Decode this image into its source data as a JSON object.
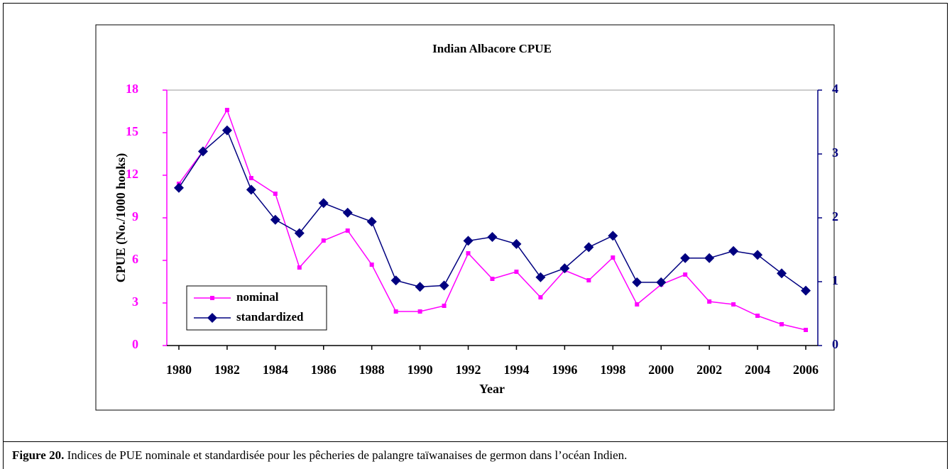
{
  "chart_data": {
    "type": "line",
    "title": "Indian Albacore CPUE",
    "x_label": "Year",
    "y_label": "CPUE (No./1000 hooks)",
    "x": [
      1980,
      1981,
      1982,
      1983,
      1984,
      1985,
      1986,
      1987,
      1988,
      1989,
      1990,
      1991,
      1992,
      1993,
      1994,
      1995,
      1996,
      1997,
      1998,
      1999,
      2000,
      2001,
      2002,
      2003,
      2004,
      2005,
      2006
    ],
    "xlim": [
      1979.5,
      2006.5
    ],
    "xticks": [
      1980,
      1982,
      1984,
      1986,
      1988,
      1990,
      1992,
      1994,
      1996,
      1998,
      2000,
      2002,
      2004,
      2006
    ],
    "ylim": [
      0,
      18
    ],
    "yticks": [
      0,
      3,
      6,
      9,
      12,
      15,
      18
    ],
    "y_color": "#ff00ff",
    "y2lim": [
      0,
      4
    ],
    "y2ticks": [
      0,
      1,
      2,
      3,
      4
    ],
    "y2_color": "#000080",
    "legend": "lower left",
    "series": [
      {
        "name": "nominal",
        "color": "#ff00ff",
        "marker": "square",
        "values": [
          11.4,
          13.7,
          16.6,
          11.8,
          10.7,
          5.5,
          7.4,
          8.1,
          5.7,
          2.4,
          2.4,
          2.8,
          6.5,
          4.7,
          5.2,
          3.4,
          5.3,
          4.6,
          6.2,
          2.9,
          4.3,
          5.0,
          3.1,
          2.9,
          2.1,
          1.5,
          1.1
        ]
      },
      {
        "name": "standardized",
        "color": "#000080",
        "marker": "diamond",
        "axis": "y2",
        "values": [
          2.47,
          3.04,
          3.37,
          2.44,
          1.97,
          1.76,
          2.23,
          2.08,
          1.94,
          1.02,
          0.92,
          0.94,
          1.64,
          1.7,
          1.59,
          1.07,
          1.21,
          1.54,
          1.72,
          0.99,
          0.99,
          1.37,
          1.37,
          1.48,
          1.42,
          1.13,
          0.86
        ]
      }
    ]
  },
  "caption": {
    "label": "Figure 20.",
    "text": " Indices de PUE nominale et standardisée pour les pêcheries de palangre taïwanaises de germon dans l’océan Indien."
  }
}
